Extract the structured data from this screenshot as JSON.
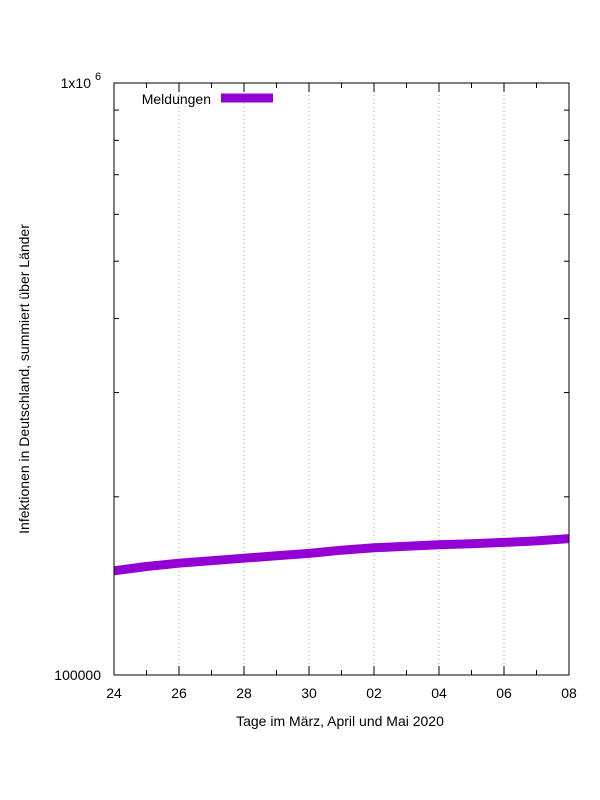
{
  "chart_data": {
    "type": "line",
    "title": "",
    "xlabel": "Tage im März, April und Mai 2020",
    "ylabel": "Infektionen in Deutschland, summiert über Länder",
    "yscale": "log",
    "ylim": [
      100000,
      1000000
    ],
    "xlim": [
      "2020-04-24",
      "2020-05-08"
    ],
    "x_ticks": [
      "24",
      "25",
      "26",
      "27",
      "28",
      "29",
      "30",
      "01",
      "02",
      "03",
      "04",
      "05",
      "06",
      "07",
      "08"
    ],
    "x_tick_labels": [
      "24",
      "",
      "26",
      "",
      "28",
      "",
      "30",
      "",
      "02",
      "",
      "04",
      "",
      "06",
      "",
      "08"
    ],
    "y_tick_labels": {
      "top_mantissa": "1x10",
      "top_exponent": "6",
      "bottom": "100000"
    },
    "grid": "vertical dotted at labelled x ticks",
    "legend_position": "top-left",
    "series": [
      {
        "name": "Meldungen",
        "color": "#9400d3",
        "x": [
          "2020-04-24",
          "2020-04-25",
          "2020-04-26",
          "2020-04-27",
          "2020-04-28",
          "2020-04-29",
          "2020-04-30",
          "2020-05-01",
          "2020-05-02",
          "2020-05-03",
          "2020-05-04",
          "2020-05-05",
          "2020-05-06",
          "2020-05-07",
          "2020-05-08"
        ],
        "values": [
          150000,
          152500,
          154500,
          156000,
          157500,
          159000,
          160500,
          162500,
          164000,
          165000,
          166000,
          166600,
          167500,
          168500,
          170000
        ]
      }
    ]
  }
}
